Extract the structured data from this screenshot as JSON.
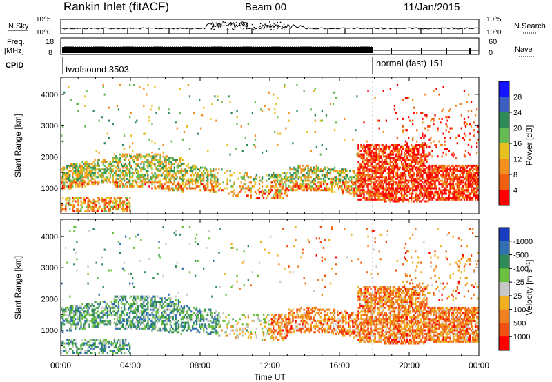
{
  "header": {
    "station": "Rankin Inlet (fitACF)",
    "beam": "Beam 00",
    "date": "11/Jan/2015"
  },
  "panels": {
    "nsky": {
      "label": "N.Sky",
      "right_label": "N.Search",
      "tick_top": "10^5",
      "tick_bottom": "10^0"
    },
    "freq": {
      "label_line1": "Freq.",
      "label_line2": "[MHz]",
      "left_ticks": [
        "18",
        "8"
      ],
      "right_ticks": [
        "60",
        "0"
      ],
      "right_label": "Nave"
    },
    "cpid": {
      "label": "CPID",
      "segments": [
        {
          "text": "twofsound 3503"
        },
        {
          "text": "normal (fast) 151"
        }
      ]
    }
  },
  "chart_data": [
    {
      "type": "heatmap",
      "name": "power-rti",
      "ylabel": "Slant Range [km]",
      "y_ticks": [
        "1000",
        "2000",
        "3000",
        "4000"
      ],
      "ylim": [
        180,
        4550
      ],
      "xlim_hours": [
        0,
        24
      ],
      "colorbar": {
        "label": "Power [dB]",
        "tick_labels": [
          "4",
          "8",
          "12",
          "16",
          "20",
          "24",
          "28"
        ],
        "colors": [
          "#1414ff",
          "#3b5fc0",
          "#2e8b57",
          "#66bb55",
          "#e8c020",
          "#f39020",
          "#f06010",
          "#ff0000"
        ]
      }
    },
    {
      "type": "heatmap",
      "name": "velocity-rti",
      "ylabel": "Slant Range [km]",
      "y_ticks": [
        "1000",
        "2000",
        "3000",
        "4000"
      ],
      "ylim": [
        180,
        4550
      ],
      "xlim_hours": [
        0,
        24
      ],
      "colorbar": {
        "label": "Velocity [m s⁻¹]",
        "tick_labels": [
          "1000",
          "500",
          "100",
          "25",
          "-25",
          "-100",
          "-500",
          "-1000"
        ],
        "colors": [
          "#1a3cc0",
          "#3070b0",
          "#2e8b57",
          "#6cc040",
          "#c8c8c8",
          "#f0b020",
          "#f08020",
          "#f05010",
          "#ff0000"
        ]
      }
    }
  ],
  "time_axis": {
    "tick_labels": [
      "00:00",
      "04:00",
      "08:00",
      "12:00",
      "16:00",
      "20:00",
      "00:00"
    ],
    "xlabel": "Time UT"
  }
}
